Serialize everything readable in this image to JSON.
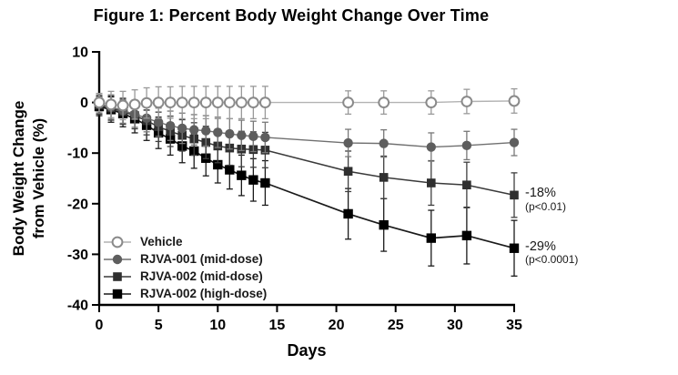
{
  "figure": {
    "title": "Figure 1: Percent Body Weight Change Over Time"
  },
  "chart_data": {
    "type": "line",
    "title": "Figure 1: Percent Body Weight Change Over Time",
    "xlabel": "Days",
    "ylabel_line1": "Body Weight Change",
    "ylabel_line2": "from Vehicle (%)",
    "xlim": [
      0,
      35
    ],
    "ylim": [
      -40,
      10
    ],
    "x_ticks": [
      0,
      5,
      10,
      15,
      20,
      25,
      30,
      35
    ],
    "y_ticks": [
      10,
      0,
      -10,
      -20,
      -30,
      -40
    ],
    "grid": false,
    "legend_position": "inside-bottom-left",
    "x": [
      0,
      1,
      2,
      3,
      4,
      5,
      6,
      7,
      8,
      9,
      10,
      11,
      12,
      13,
      14,
      21,
      24,
      28,
      31,
      35
    ],
    "series": [
      {
        "name": "Vehicle",
        "marker": "open-circle",
        "marker_size": 5.4,
        "color": "#8a8a8a",
        "fill": "#ffffff",
        "line_color": "#b2b2b2",
        "err_color": "#9a9a9a",
        "line_width": 1.4,
        "values": [
          0,
          -0.4,
          -0.6,
          -0.4,
          -0.1,
          0,
          0,
          0,
          0,
          0,
          0,
          0,
          0,
          0,
          0,
          0,
          0,
          0,
          0.2,
          0.3
        ],
        "errors": [
          1.8,
          2.6,
          2.8,
          2.9,
          3.0,
          3.1,
          3.1,
          3.2,
          3.2,
          3.2,
          3.2,
          3.2,
          3.2,
          3.2,
          3.2,
          2.3,
          2.3,
          2.3,
          2.4,
          2.4
        ]
      },
      {
        "name": "RJVA-001 (mid-dose)",
        "marker": "circle",
        "marker_size": 5.2,
        "color": "#5e5e5e",
        "fill": "#5e5e5e",
        "line_color": "#707070",
        "err_color": "#787878",
        "line_width": 1.4,
        "values": [
          -0.3,
          -0.9,
          -1.6,
          -2.3,
          -3.1,
          -3.9,
          -4.6,
          -5.1,
          -5.4,
          -5.6,
          -5.9,
          -6.2,
          -6.5,
          -6.7,
          -6.9,
          -8.0,
          -8.1,
          -8.8,
          -8.5,
          -7.9
        ],
        "errors": [
          1.8,
          2.4,
          2.5,
          2.6,
          2.7,
          2.8,
          2.9,
          3.0,
          3.0,
          3.0,
          3.0,
          3.0,
          3.0,
          3.0,
          3.0,
          2.7,
          2.7,
          2.8,
          2.8,
          2.6
        ]
      },
      {
        "name": "RJVA-002 (mid-dose)",
        "marker": "square",
        "marker_size": 9.6,
        "color": "#2f2f2f",
        "fill": "#2f2f2f",
        "line_color": "#3a3a3a",
        "err_color": "#3f3f3f",
        "line_width": 1.5,
        "values": [
          -0.5,
          -1.1,
          -1.8,
          -2.6,
          -3.6,
          -4.8,
          -5.7,
          -6.5,
          -7.2,
          -7.9,
          -8.6,
          -9.0,
          -9.2,
          -9.3,
          -9.4,
          -13.6,
          -14.8,
          -15.9,
          -16.3,
          -18.3
        ],
        "errors": [
          1.8,
          2.4,
          2.5,
          2.6,
          2.8,
          2.9,
          3.0,
          3.1,
          3.2,
          3.2,
          3.3,
          3.4,
          3.5,
          3.5,
          3.5,
          4.0,
          4.2,
          4.4,
          4.5,
          4.4
        ]
      },
      {
        "name": "RJVA-002 (high-dose)",
        "marker": "square",
        "marker_size": 10.4,
        "color": "#000000",
        "fill": "#000000",
        "line_color": "#1a1a1a",
        "err_color": "#1a1a1a",
        "line_width": 1.7,
        "values": [
          -0.8,
          -1.4,
          -2.2,
          -3.2,
          -4.5,
          -6.0,
          -7.2,
          -8.6,
          -9.6,
          -11.0,
          -12.3,
          -13.3,
          -14.4,
          -15.3,
          -15.9,
          -22.0,
          -24.2,
          -26.8,
          -26.3,
          -28.8
        ],
        "errors": [
          1.8,
          2.5,
          2.6,
          2.8,
          3.0,
          3.1,
          3.2,
          3.3,
          3.4,
          3.5,
          3.6,
          3.8,
          4.0,
          4.2,
          4.4,
          5.0,
          5.2,
          5.5,
          5.6,
          5.5
        ]
      }
    ],
    "annotations": [
      {
        "label": "-18%",
        "detail": "(p<0.01)",
        "day": 35,
        "value": -18.3
      },
      {
        "label": "-29%",
        "detail": "(p<0.0001)",
        "day": 35,
        "value": -28.8
      }
    ]
  }
}
